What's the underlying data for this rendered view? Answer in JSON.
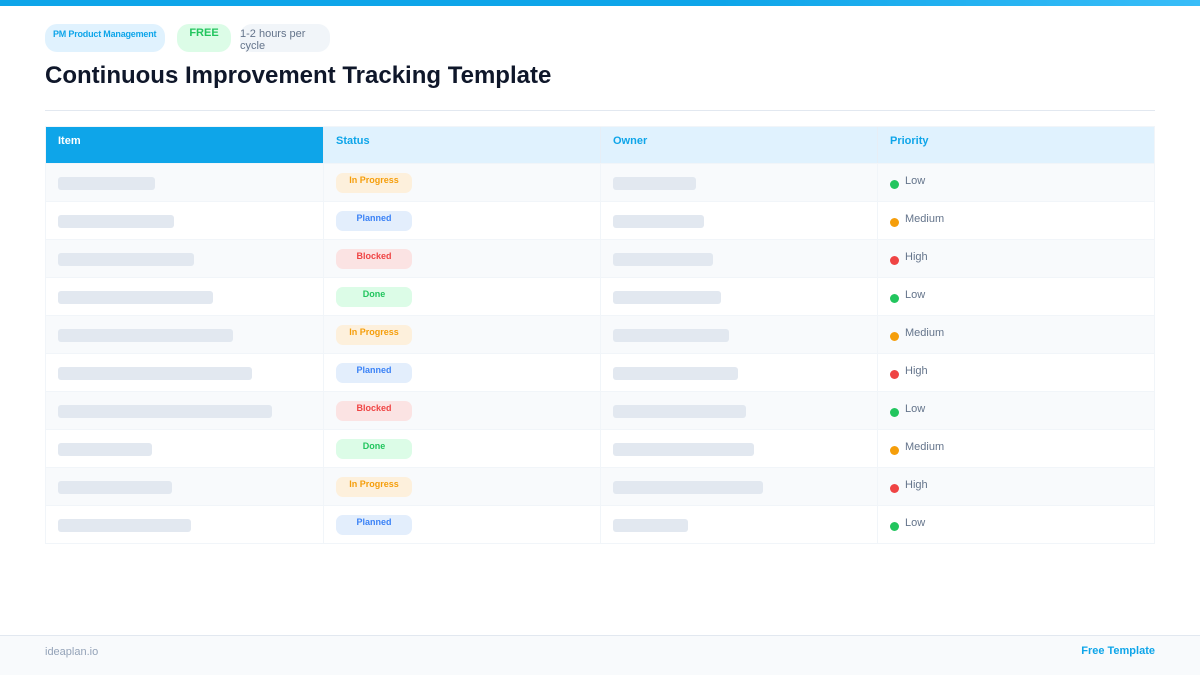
{
  "header": {
    "tags": {
      "category": "PM  Product Management",
      "price": "FREE",
      "time": "1-2 hours per cycle"
    },
    "title": "Continuous Improvement Tracking Template"
  },
  "colors": {
    "accent": "#0ea5e9",
    "header_light": "#e0f2fe",
    "placeholder": "#e2e8f0",
    "status": {
      "In Progress": {
        "bg": "#fdf0dc",
        "fg": "#f59e0b"
      },
      "Planned": {
        "bg": "#e3eefc",
        "fg": "#3b82f6"
      },
      "Blocked": {
        "bg": "#fbe3e3",
        "fg": "#ef4444"
      },
      "Done": {
        "bg": "#dcfce7",
        "fg": "#22c55e"
      }
    },
    "priority": {
      "Low": "#22c55e",
      "Medium": "#f59e0b",
      "High": "#ef4444"
    }
  },
  "table": {
    "columns": [
      "Item",
      "Status",
      "Owner",
      "Priority"
    ],
    "rows": [
      {
        "item_w": 97,
        "status": "In Progress",
        "owner_w": 83,
        "priority": "Low"
      },
      {
        "item_w": 116,
        "status": "Planned",
        "owner_w": 91,
        "priority": "Medium"
      },
      {
        "item_w": 136,
        "status": "Blocked",
        "owner_w": 100,
        "priority": "High"
      },
      {
        "item_w": 155,
        "status": "Done",
        "owner_w": 108,
        "priority": "Low"
      },
      {
        "item_w": 175,
        "status": "In Progress",
        "owner_w": 116,
        "priority": "Medium"
      },
      {
        "item_w": 194,
        "status": "Planned",
        "owner_w": 125,
        "priority": "High"
      },
      {
        "item_w": 214,
        "status": "Blocked",
        "owner_w": 133,
        "priority": "Low"
      },
      {
        "item_w": 94,
        "status": "Done",
        "owner_w": 141,
        "priority": "Medium"
      },
      {
        "item_w": 114,
        "status": "In Progress",
        "owner_w": 150,
        "priority": "High"
      },
      {
        "item_w": 133,
        "status": "Planned",
        "owner_w": 75,
        "priority": "Low"
      }
    ]
  },
  "footer": {
    "site": "ideaplan.io",
    "label": "Free Template"
  }
}
